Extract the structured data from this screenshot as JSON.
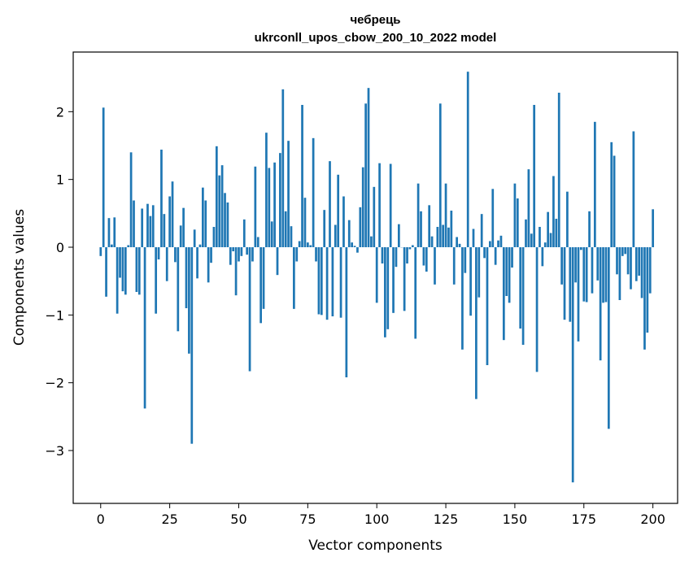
{
  "chart_data": {
    "type": "bar",
    "title": "чебрець",
    "subtitle": "ukrconll_upos_cbow_200_10_2022 model",
    "xlabel": "Vector components",
    "ylabel": "Components values",
    "xlim": [
      -9.95,
      208.95
    ],
    "ylim": [
      -3.78,
      2.88
    ],
    "xticks": [
      0,
      25,
      50,
      75,
      100,
      125,
      150,
      175,
      200
    ],
    "xtick_labels": [
      "0",
      "25",
      "50",
      "75",
      "100",
      "125",
      "150",
      "175",
      "200"
    ],
    "yticks": [
      -3,
      -2,
      -1,
      0,
      1,
      2
    ],
    "ytick_labels": [
      "−3",
      "−2",
      "−1",
      "0",
      "1",
      "2"
    ],
    "bar_color": "#1f77b4",
    "grid": false,
    "values": [
      -0.13,
      2.06,
      -0.73,
      0.43,
      0.04,
      0.44,
      -0.98,
      -0.45,
      -0.65,
      -0.7,
      0.03,
      1.4,
      0.69,
      -0.66,
      -0.7,
      0.57,
      -2.38,
      0.64,
      0.46,
      0.62,
      -0.98,
      -0.18,
      1.44,
      0.49,
      -0.5,
      0.75,
      0.97,
      -0.22,
      -1.24,
      0.32,
      0.58,
      -0.9,
      -1.57,
      -2.9,
      0.26,
      -0.46,
      0.04,
      0.88,
      0.69,
      -0.52,
      -0.23,
      0.3,
      1.49,
      1.06,
      1.21,
      0.8,
      0.66,
      -0.26,
      -0.06,
      -0.71,
      -0.21,
      -0.13,
      0.41,
      -0.11,
      -1.83,
      -0.21,
      1.19,
      0.15,
      -1.12,
      -0.91,
      1.69,
      1.17,
      0.38,
      1.25,
      -0.41,
      1.39,
      2.33,
      0.53,
      1.57,
      0.31,
      -0.91,
      -0.21,
      0.09,
      2.1,
      0.73,
      0.07,
      0.03,
      1.61,
      -0.21,
      -0.99,
      -1.0,
      0.55,
      -1.07,
      1.27,
      -1.02,
      0.33,
      1.07,
      -1.04,
      0.75,
      -1.92,
      0.4,
      0.07,
      0.02,
      -0.08,
      0.59,
      1.18,
      2.12,
      2.35,
      0.16,
      0.89,
      -0.82,
      1.24,
      -0.24,
      -1.33,
      -1.21,
      1.23,
      -0.97,
      -0.29,
      0.34,
      0.0,
      -0.94,
      -0.24,
      -0.03,
      0.03,
      -1.35,
      0.94,
      0.53,
      -0.27,
      -0.36,
      0.62,
      0.16,
      -0.55,
      0.3,
      2.12,
      0.33,
      0.94,
      0.29,
      0.54,
      -0.55,
      0.15,
      0.05,
      -1.51,
      -0.38,
      2.59,
      -1.01,
      0.27,
      -2.24,
      -0.74,
      0.49,
      -0.16,
      -1.74,
      0.09,
      0.86,
      -0.26,
      0.1,
      0.17,
      -1.37,
      -0.72,
      -0.82,
      -0.3,
      0.94,
      0.72,
      -1.2,
      -1.44,
      0.41,
      1.15,
      0.2,
      2.1,
      -1.84,
      0.3,
      -0.28,
      0.07,
      0.52,
      0.21,
      1.05,
      0.42,
      2.28,
      -0.55,
      -1.07,
      0.82,
      -1.1,
      -3.47,
      -0.52,
      -1.39,
      -0.04,
      -0.8,
      -0.81,
      0.53,
      -0.68,
      1.85,
      -0.49,
      -1.67,
      -0.82,
      -0.81,
      -2.68,
      1.55,
      1.35,
      -0.4,
      -0.78,
      -0.13,
      -0.1,
      -0.4,
      -0.62,
      1.71,
      -0.5,
      -0.42,
      -0.75,
      -1.51,
      -1.26,
      -0.68,
      0.56
    ]
  }
}
